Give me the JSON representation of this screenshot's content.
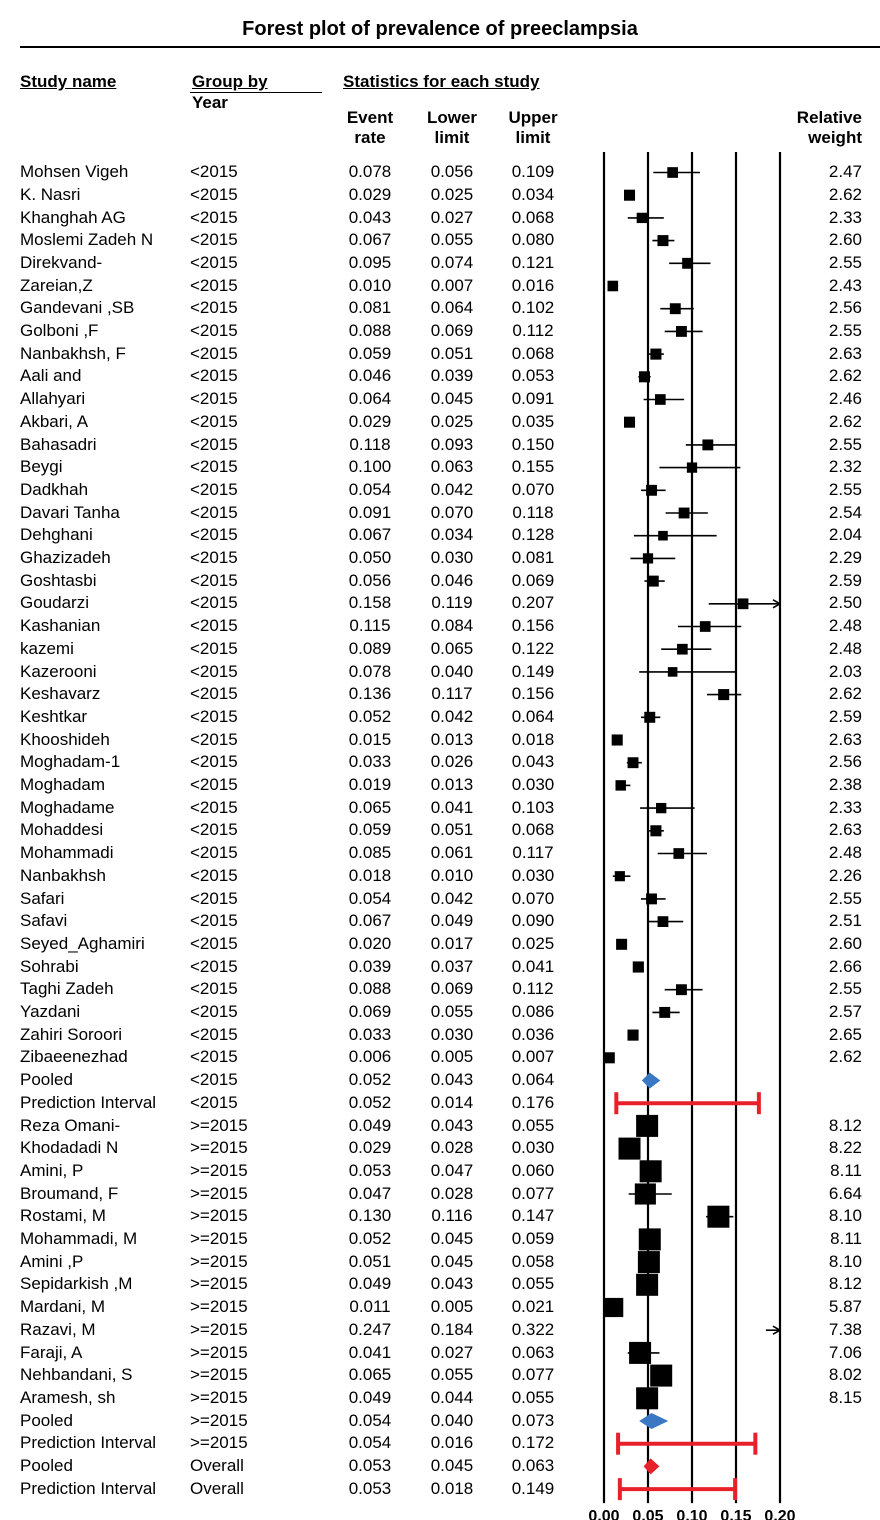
{
  "chart_data": {
    "type": "forest",
    "title": "Forest plot of prevalence of preeclampsia",
    "headers": {
      "study_name": "Study name",
      "group_by": "Group by",
      "group_sub": "Year",
      "stats": "Statistics for each study",
      "event": "Event",
      "event2": "rate",
      "lower": "Lower",
      "lower2": "limit",
      "upper": "Upper",
      "upper2": "limit",
      "relative": "Relative",
      "weight": "weight"
    },
    "x_ticks": [
      "0.00",
      "0.05",
      "0.10",
      "0.15",
      "0.20"
    ],
    "xlim": [
      0,
      0.2
    ],
    "rows": [
      {
        "name": "Mohsen Vigeh",
        "group": "<2015",
        "rate": "0.078",
        "lower": "0.056",
        "upper": "0.109",
        "weight": "2.47",
        "kind": "study"
      },
      {
        "name": "K. Nasri",
        "group": "<2015",
        "rate": "0.029",
        "lower": "0.025",
        "upper": "0.034",
        "weight": "2.62",
        "kind": "study"
      },
      {
        "name": "Khanghah AG",
        "group": "<2015",
        "rate": "0.043",
        "lower": "0.027",
        "upper": "0.068",
        "weight": "2.33",
        "kind": "study"
      },
      {
        "name": "Moslemi Zadeh N",
        "group": "<2015",
        "rate": "0.067",
        "lower": "0.055",
        "upper": "0.080",
        "weight": "2.60",
        "kind": "study"
      },
      {
        "name": "Direkvand-",
        "group": "<2015",
        "rate": "0.095",
        "lower": "0.074",
        "upper": "0.121",
        "weight": "2.55",
        "kind": "study"
      },
      {
        "name": "Zareian,Z",
        "group": "<2015",
        "rate": "0.010",
        "lower": "0.007",
        "upper": "0.016",
        "weight": "2.43",
        "kind": "study"
      },
      {
        "name": "Gandevani ,SB",
        "group": "<2015",
        "rate": "0.081",
        "lower": "0.064",
        "upper": "0.102",
        "weight": "2.56",
        "kind": "study"
      },
      {
        "name": "Golboni ,F",
        "group": "<2015",
        "rate": "0.088",
        "lower": "0.069",
        "upper": "0.112",
        "weight": "2.55",
        "kind": "study"
      },
      {
        "name": "Nanbakhsh, F",
        "group": "<2015",
        "rate": "0.059",
        "lower": "0.051",
        "upper": "0.068",
        "weight": "2.63",
        "kind": "study"
      },
      {
        "name": "Aali and",
        "group": "<2015",
        "rate": "0.046",
        "lower": "0.039",
        "upper": "0.053",
        "weight": "2.62",
        "kind": "study"
      },
      {
        "name": "Allahyari",
        "group": "<2015",
        "rate": "0.064",
        "lower": "0.045",
        "upper": "0.091",
        "weight": "2.46",
        "kind": "study"
      },
      {
        "name": "Akbari, A",
        "group": "<2015",
        "rate": "0.029",
        "lower": "0.025",
        "upper": "0.035",
        "weight": "2.62",
        "kind": "study"
      },
      {
        "name": "Bahasadri",
        "group": "<2015",
        "rate": "0.118",
        "lower": "0.093",
        "upper": "0.150",
        "weight": "2.55",
        "kind": "study"
      },
      {
        "name": "Beygi",
        "group": "<2015",
        "rate": "0.100",
        "lower": "0.063",
        "upper": "0.155",
        "weight": "2.32",
        "kind": "study"
      },
      {
        "name": "Dadkhah",
        "group": "<2015",
        "rate": "0.054",
        "lower": "0.042",
        "upper": "0.070",
        "weight": "2.55",
        "kind": "study"
      },
      {
        "name": "Davari Tanha",
        "group": "<2015",
        "rate": "0.091",
        "lower": "0.070",
        "upper": "0.118",
        "weight": "2.54",
        "kind": "study"
      },
      {
        "name": "Dehghani",
        "group": "<2015",
        "rate": "0.067",
        "lower": "0.034",
        "upper": "0.128",
        "weight": "2.04",
        "kind": "study"
      },
      {
        "name": "Ghazizadeh",
        "group": "<2015",
        "rate": "0.050",
        "lower": "0.030",
        "upper": "0.081",
        "weight": "2.29",
        "kind": "study"
      },
      {
        "name": "Goshtasbi",
        "group": "<2015",
        "rate": "0.056",
        "lower": "0.046",
        "upper": "0.069",
        "weight": "2.59",
        "kind": "study"
      },
      {
        "name": "Goudarzi",
        "group": "<2015",
        "rate": "0.158",
        "lower": "0.119",
        "upper": "0.207",
        "weight": "2.50",
        "kind": "study"
      },
      {
        "name": "Kashanian",
        "group": "<2015",
        "rate": "0.115",
        "lower": "0.084",
        "upper": "0.156",
        "weight": "2.48",
        "kind": "study"
      },
      {
        "name": "kazemi",
        "group": "<2015",
        "rate": "0.089",
        "lower": "0.065",
        "upper": "0.122",
        "weight": "2.48",
        "kind": "study"
      },
      {
        "name": "Kazerooni",
        "group": "<2015",
        "rate": "0.078",
        "lower": "0.040",
        "upper": "0.149",
        "weight": "2.03",
        "kind": "study"
      },
      {
        "name": "Keshavarz",
        "group": "<2015",
        "rate": "0.136",
        "lower": "0.117",
        "upper": "0.156",
        "weight": "2.62",
        "kind": "study"
      },
      {
        "name": "Keshtkar",
        "group": "<2015",
        "rate": "0.052",
        "lower": "0.042",
        "upper": "0.064",
        "weight": "2.59",
        "kind": "study"
      },
      {
        "name": "Khooshideh",
        "group": "<2015",
        "rate": "0.015",
        "lower": "0.013",
        "upper": "0.018",
        "weight": "2.63",
        "kind": "study"
      },
      {
        "name": "Moghadam-1",
        "group": "<2015",
        "rate": "0.033",
        "lower": "0.026",
        "upper": "0.043",
        "weight": "2.56",
        "kind": "study"
      },
      {
        "name": "Moghadam",
        "group": "<2015",
        "rate": "0.019",
        "lower": "0.013",
        "upper": "0.030",
        "weight": "2.38",
        "kind": "study"
      },
      {
        "name": "Moghadame",
        "group": "<2015",
        "rate": "0.065",
        "lower": "0.041",
        "upper": "0.103",
        "weight": "2.33",
        "kind": "study"
      },
      {
        "name": "Mohaddesi",
        "group": "<2015",
        "rate": "0.059",
        "lower": "0.051",
        "upper": "0.068",
        "weight": "2.63",
        "kind": "study"
      },
      {
        "name": "Mohammadi",
        "group": "<2015",
        "rate": "0.085",
        "lower": "0.061",
        "upper": "0.117",
        "weight": "2.48",
        "kind": "study"
      },
      {
        "name": "Nanbakhsh",
        "group": "<2015",
        "rate": "0.018",
        "lower": "0.010",
        "upper": "0.030",
        "weight": "2.26",
        "kind": "study"
      },
      {
        "name": "Safari",
        "group": "<2015",
        "rate": "0.054",
        "lower": "0.042",
        "upper": "0.070",
        "weight": "2.55",
        "kind": "study"
      },
      {
        "name": "Safavi",
        "group": "<2015",
        "rate": "0.067",
        "lower": "0.049",
        "upper": "0.090",
        "weight": "2.51",
        "kind": "study"
      },
      {
        "name": "Seyed_Aghamiri",
        "group": "<2015",
        "rate": "0.020",
        "lower": "0.017",
        "upper": "0.025",
        "weight": "2.60",
        "kind": "study"
      },
      {
        "name": "Sohrabi",
        "group": "<2015",
        "rate": "0.039",
        "lower": "0.037",
        "upper": "0.041",
        "weight": "2.66",
        "kind": "study"
      },
      {
        "name": "Taghi Zadeh",
        "group": "<2015",
        "rate": "0.088",
        "lower": "0.069",
        "upper": "0.112",
        "weight": "2.55",
        "kind": "study"
      },
      {
        "name": "Yazdani",
        "group": "<2015",
        "rate": "0.069",
        "lower": "0.055",
        "upper": "0.086",
        "weight": "2.57",
        "kind": "study"
      },
      {
        "name": "Zahiri Soroori",
        "group": "<2015",
        "rate": "0.033",
        "lower": "0.030",
        "upper": "0.036",
        "weight": "2.65",
        "kind": "study"
      },
      {
        "name": "Zibaeenezhad",
        "group": "<2015",
        "rate": "0.006",
        "lower": "0.005",
        "upper": "0.007",
        "weight": "2.62",
        "kind": "study"
      },
      {
        "name": "Pooled",
        "group": "<2015",
        "rate": "0.052",
        "lower": "0.043",
        "upper": "0.064",
        "weight": "",
        "kind": "pooled",
        "color": "#3b78c4"
      },
      {
        "name": "Prediction Interval",
        "group": "<2015",
        "rate": "0.052",
        "lower": "0.014",
        "upper": "0.176",
        "weight": "",
        "kind": "pi"
      },
      {
        "name": "Reza Omani-",
        "group": ">=2015",
        "rate": "0.049",
        "lower": "0.043",
        "upper": "0.055",
        "weight": "8.12",
        "kind": "study"
      },
      {
        "name": "Khodadadi N",
        "group": ">=2015",
        "rate": "0.029",
        "lower": "0.028",
        "upper": "0.030",
        "weight": "8.22",
        "kind": "study"
      },
      {
        "name": "Amini, P",
        "group": ">=2015",
        "rate": "0.053",
        "lower": "0.047",
        "upper": "0.060",
        "weight": "8.11",
        "kind": "study"
      },
      {
        "name": "Broumand, F",
        "group": ">=2015",
        "rate": "0.047",
        "lower": "0.028",
        "upper": "0.077",
        "weight": "6.64",
        "kind": "study"
      },
      {
        "name": "Rostami, M",
        "group": ">=2015",
        "rate": "0.130",
        "lower": "0.116",
        "upper": "0.147",
        "weight": "8.10",
        "kind": "study"
      },
      {
        "name": "Mohammadi, M",
        "group": ">=2015",
        "rate": "0.052",
        "lower": "0.045",
        "upper": "0.059",
        "weight": "8.11",
        "kind": "study"
      },
      {
        "name": "Amini ,P",
        "group": ">=2015",
        "rate": "0.051",
        "lower": "0.045",
        "upper": "0.058",
        "weight": "8.10",
        "kind": "study"
      },
      {
        "name": "Sepidarkish ,M",
        "group": ">=2015",
        "rate": "0.049",
        "lower": "0.043",
        "upper": "0.055",
        "weight": "8.12",
        "kind": "study"
      },
      {
        "name": "Mardani, M",
        "group": ">=2015",
        "rate": "0.011",
        "lower": "0.005",
        "upper": "0.021",
        "weight": "5.87",
        "kind": "study"
      },
      {
        "name": "Razavi, M",
        "group": ">=2015",
        "rate": "0.247",
        "lower": "0.184",
        "upper": "0.322",
        "weight": "7.38",
        "kind": "study"
      },
      {
        "name": "Faraji, A",
        "group": ">=2015",
        "rate": "0.041",
        "lower": "0.027",
        "upper": "0.063",
        "weight": "7.06",
        "kind": "study"
      },
      {
        "name": "Nehbandani, S",
        "group": ">=2015",
        "rate": "0.065",
        "lower": "0.055",
        "upper": "0.077",
        "weight": "8.02",
        "kind": "study"
      },
      {
        "name": "Aramesh, sh",
        "group": ">=2015",
        "rate": "0.049",
        "lower": "0.044",
        "upper": "0.055",
        "weight": "8.15",
        "kind": "study"
      },
      {
        "name": "Pooled",
        "group": ">=2015",
        "rate": "0.054",
        "lower": "0.040",
        "upper": "0.073",
        "weight": "",
        "kind": "pooled",
        "color": "#3b78c4"
      },
      {
        "name": "Prediction Interval",
        "group": ">=2015",
        "rate": "0.054",
        "lower": "0.016",
        "upper": "0.172",
        "weight": "",
        "kind": "pi"
      },
      {
        "name": "Pooled",
        "group": "Overall",
        "rate": "0.053",
        "lower": "0.045",
        "upper": "0.063",
        "weight": "",
        "kind": "pooled",
        "color": "#e8202a"
      },
      {
        "name": "Prediction Interval",
        "group": "Overall",
        "rate": "0.053",
        "lower": "0.018",
        "upper": "0.149",
        "weight": "",
        "kind": "pi"
      }
    ]
  }
}
